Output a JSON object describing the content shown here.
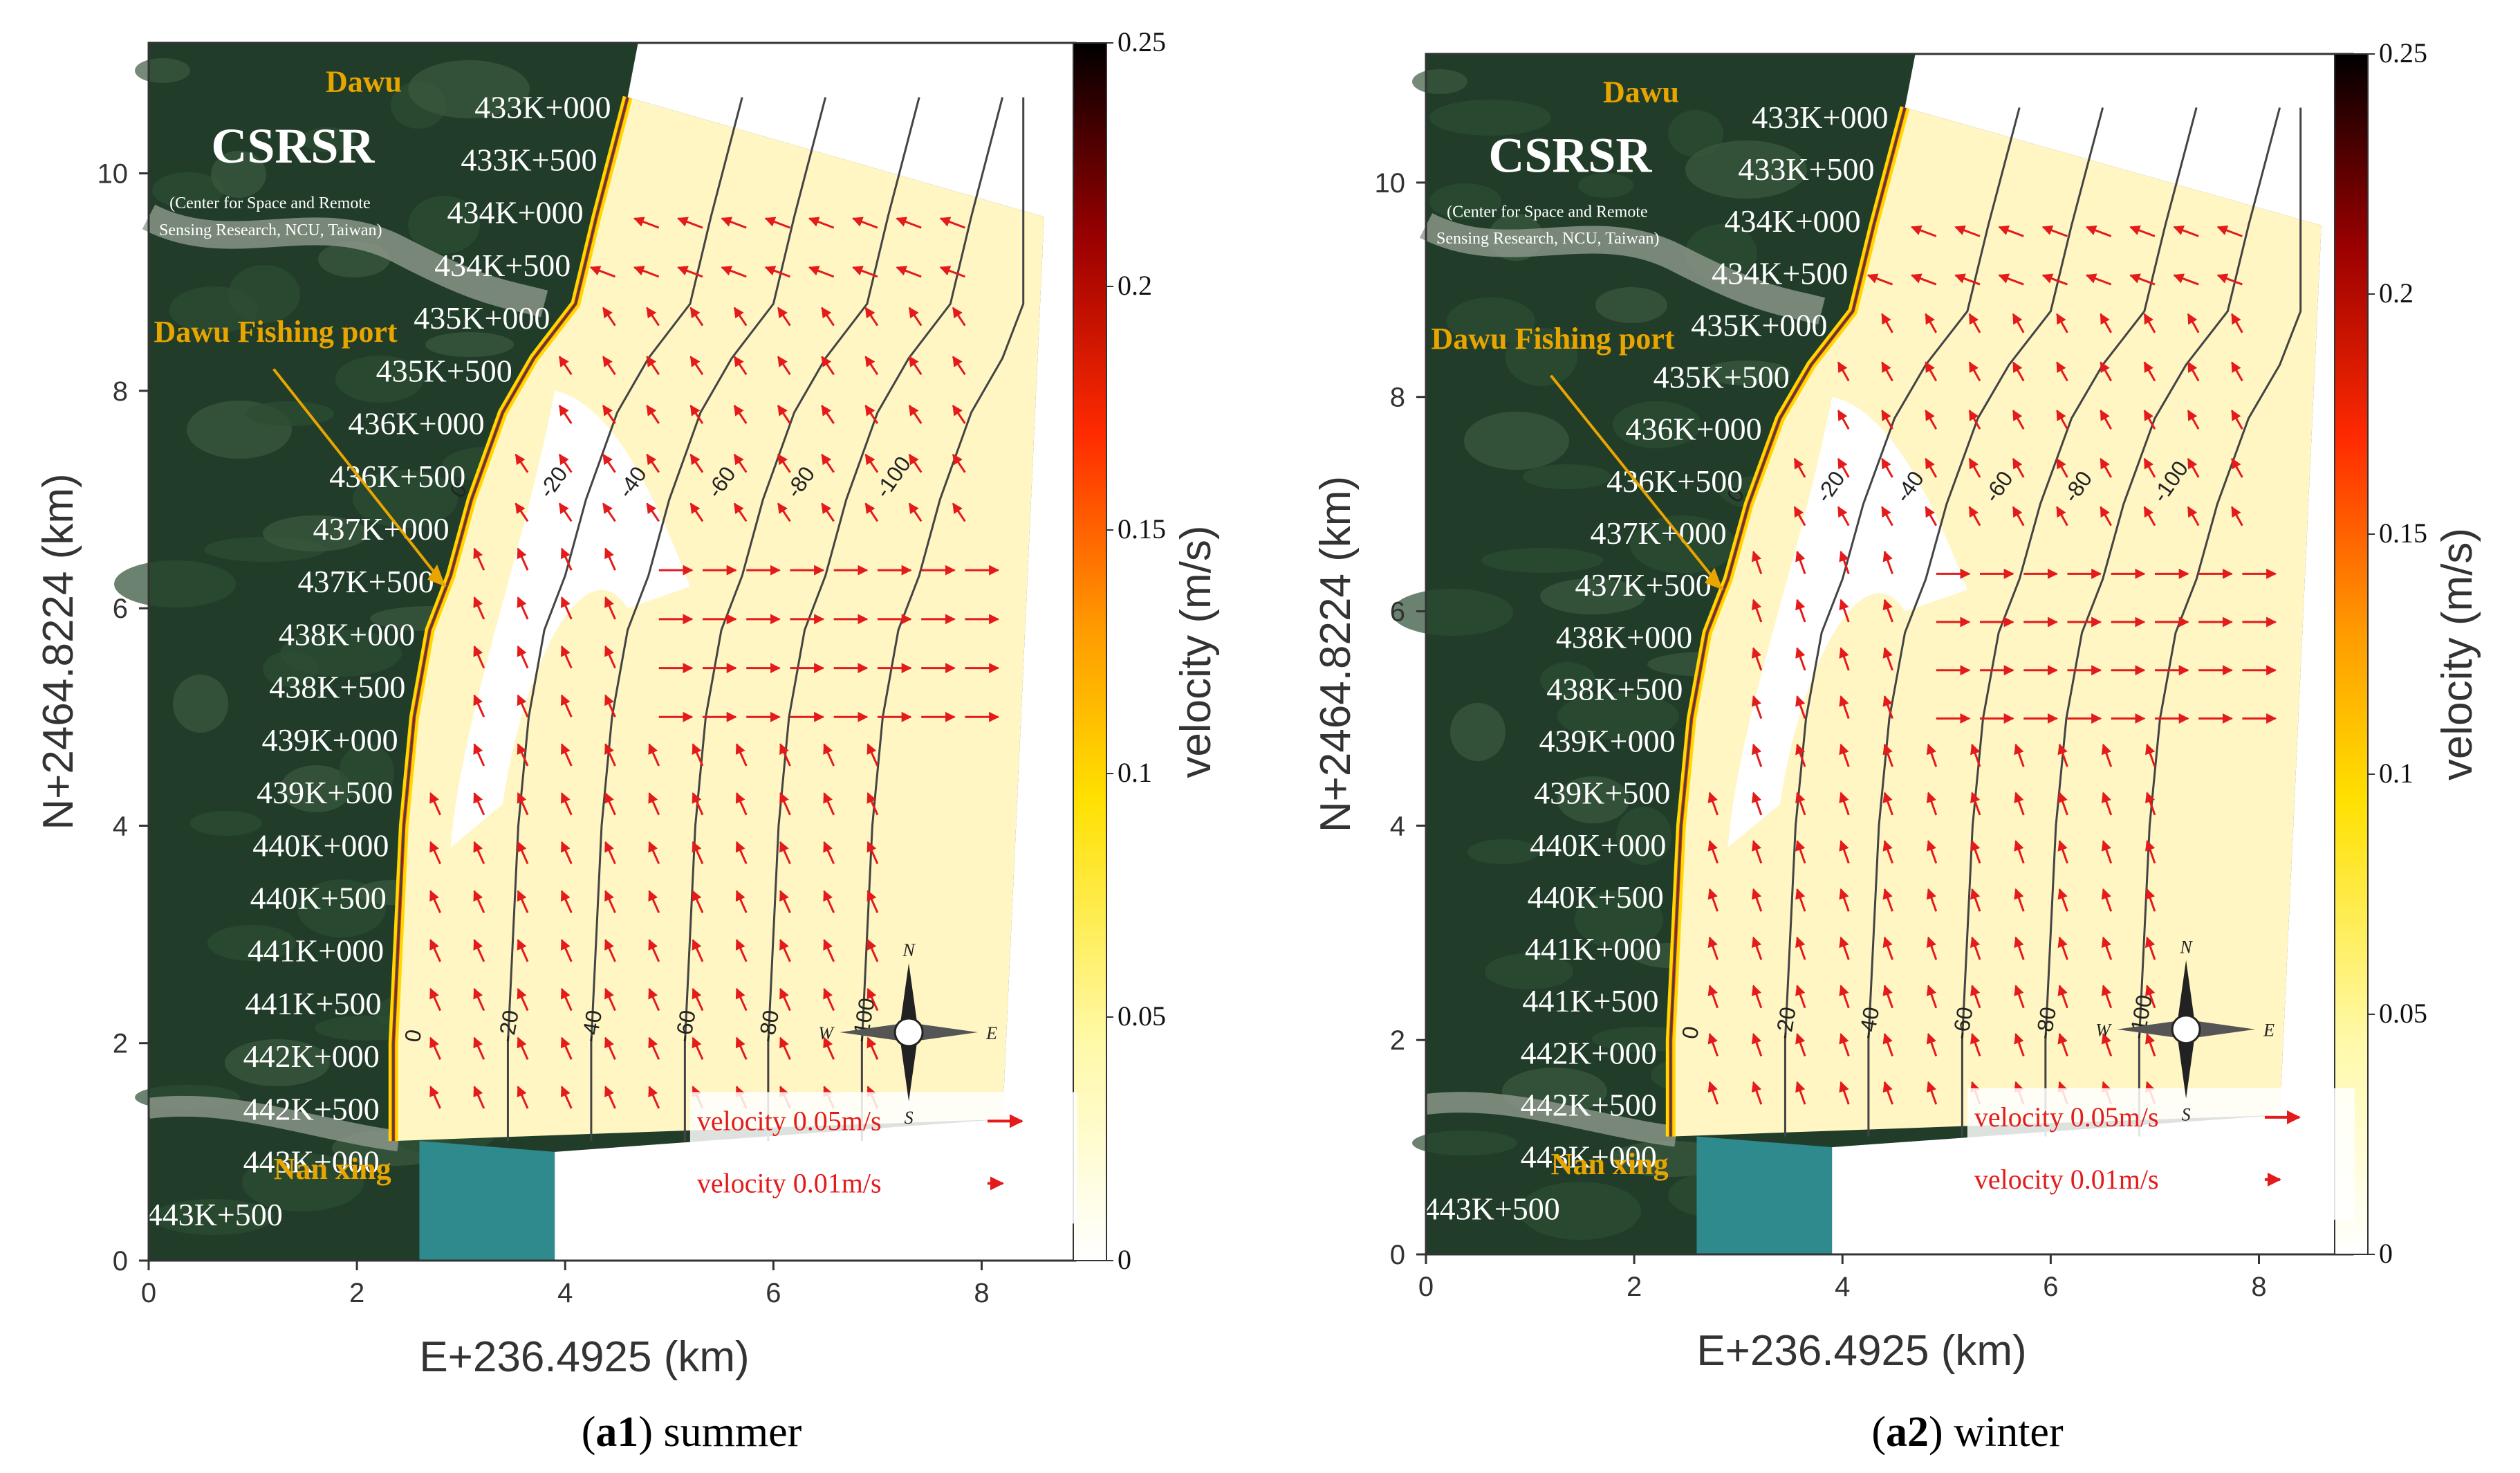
{
  "panels": [
    {
      "id": "a1",
      "caption_prefix": "(",
      "caption_bold": "a1",
      "caption_rest": ") summer",
      "ylabel": "N+2464.8224 (km)",
      "xlabel": "E+236.4925 (km)",
      "colorbar_label": "velocity (m/s)",
      "x_ticks": [
        "0",
        "2",
        "4",
        "6",
        "8"
      ],
      "y_ticks": [
        "0",
        "2",
        "4",
        "6",
        "8",
        "10"
      ],
      "cb_ticks": [
        "0.25",
        "0.2",
        "0.15",
        "0.1",
        "0.05",
        "0"
      ],
      "places": {
        "north": "Dawu",
        "south": "Nan xing",
        "port": "Dawu Fishing port"
      },
      "csrsr_title": "CSRSR",
      "csrsr_sub1": "(Center for Space and Remote",
      "csrsr_sub2": "Sensing Research, NCU, Taiwan)",
      "chainages": [
        "433K+000",
        "433K+500",
        "434K+000",
        "434K+500",
        "435K+000",
        "435K+500",
        "436K+000",
        "436K+500",
        "437K+000",
        "437K+500",
        "438K+000",
        "438K+500",
        "439K+000",
        "439K+500",
        "440K+000",
        "440K+500",
        "441K+000",
        "441K+500",
        "442K+000",
        "442K+500",
        "443K+000",
        "443K+500"
      ],
      "contour_labels": [
        "0",
        "-20",
        "-40",
        "-60",
        "-80",
        "-100"
      ],
      "legend": [
        "velocity 0.05m/s",
        "velocity 0.01m/s"
      ],
      "compass": [
        "N",
        "S",
        "E",
        "W"
      ]
    },
    {
      "id": "a2",
      "caption_prefix": "(",
      "caption_bold": "a2",
      "caption_rest": ") winter",
      "ylabel": "N+2464.8224 (km)",
      "xlabel": "E+236.4925 (km)",
      "colorbar_label": "velocity (m/s)",
      "x_ticks": [
        "0",
        "2",
        "4",
        "6",
        "8"
      ],
      "y_ticks": [
        "0",
        "2",
        "4",
        "6",
        "8",
        "10"
      ],
      "cb_ticks": [
        "0.25",
        "0.2",
        "0.15",
        "0.1",
        "0.05",
        "0"
      ],
      "places": {
        "north": "Dawu",
        "south": "Nan xing",
        "port": "Dawu Fishing port"
      },
      "csrsr_title": "CSRSR",
      "csrsr_sub1": "(Center for Space and Remote",
      "csrsr_sub2": "Sensing Research, NCU, Taiwan)",
      "chainages": [
        "433K+000",
        "433K+500",
        "434K+000",
        "434K+500",
        "435K+000",
        "435K+500",
        "436K+000",
        "436K+500",
        "437K+000",
        "437K+500",
        "438K+000",
        "438K+500",
        "439K+000",
        "439K+500",
        "440K+000",
        "440K+500",
        "441K+000",
        "441K+500",
        "442K+000",
        "442K+500",
        "443K+000",
        "443K+500"
      ],
      "contour_labels": [
        "0",
        "-20",
        "-40",
        "-60",
        "-80",
        "-100"
      ],
      "legend": [
        "velocity 0.05m/s",
        "velocity 0.01m/s"
      ],
      "compass": [
        "N",
        "S",
        "E",
        "W"
      ]
    }
  ],
  "colors": {
    "land": "#213d2a",
    "sea": "#2e8a8c",
    "field": "#fff6c4",
    "arrow": "#e31b1b",
    "label_gold": "#e8a500"
  }
}
